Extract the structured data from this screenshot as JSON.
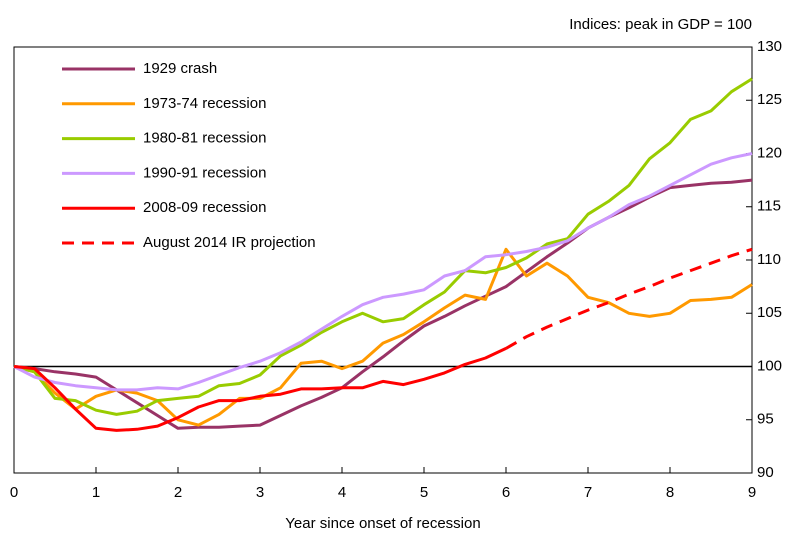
{
  "chart_data": {
    "type": "line",
    "axis_note": "Indices:  peak in GDP = 100",
    "xlabel": "Year since onset of recession",
    "x": [
      0,
      0.25,
      0.5,
      0.75,
      1,
      1.25,
      1.5,
      1.75,
      2,
      2.25,
      2.5,
      2.75,
      3,
      3.25,
      3.5,
      3.75,
      4,
      4.25,
      4.5,
      4.75,
      5,
      5.25,
      5.5,
      5.75,
      6,
      6.25,
      6.5,
      6.75,
      7,
      7.25,
      7.5,
      7.75,
      8,
      8.25,
      8.5,
      8.75,
      9
    ],
    "xlim": [
      0,
      9
    ],
    "xticks": [
      0,
      1,
      2,
      3,
      4,
      5,
      6,
      7,
      8,
      9
    ],
    "ylim": [
      90,
      130
    ],
    "yticks": [
      90,
      95,
      100,
      105,
      110,
      115,
      120,
      125,
      130
    ],
    "reference_line": 100,
    "series": [
      {
        "name": "1929 crash",
        "color": "#993366",
        "values": [
          100,
          99.8,
          99.5,
          99.3,
          99,
          97.8,
          96.6,
          95.4,
          94.2,
          94.3,
          94.3,
          94.4,
          94.5,
          95.4,
          96.3,
          97.1,
          98,
          99.5,
          100.9,
          102.4,
          103.8,
          104.7,
          105.7,
          106.6,
          107.5,
          108.9,
          110.3,
          111.6,
          113,
          114,
          114.9,
          115.9,
          116.8,
          117,
          117.2,
          117.3,
          117.5
        ]
      },
      {
        "name": "1973-74 recession",
        "color": "#ff9900",
        "values": [
          100,
          99.5,
          97.5,
          96,
          97.2,
          97.8,
          97.5,
          96.8,
          95,
          94.5,
          95.5,
          97,
          97,
          98,
          100.3,
          100.5,
          99.8,
          100.5,
          102.2,
          103,
          104.2,
          105.5,
          106.7,
          106.3,
          111,
          108.5,
          109.7,
          108.5,
          106.5,
          106,
          105,
          104.7,
          105,
          106.2,
          106.3,
          106.5,
          107.7
        ]
      },
      {
        "name": "1980-81 recession",
        "color": "#99cc00",
        "values": [
          100,
          99.5,
          97,
          96.8,
          95.9,
          95.5,
          95.8,
          96.8,
          97,
          97.2,
          98.2,
          98.4,
          99.2,
          101,
          102,
          103.2,
          104.2,
          105,
          104.2,
          104.5,
          105.8,
          107,
          109,
          108.8,
          109.3,
          110.2,
          111.5,
          112,
          114.3,
          115.5,
          117,
          119.5,
          121,
          123.2,
          124,
          125.8,
          127
        ]
      },
      {
        "name": "1990-91 recession",
        "color": "#cc99ff",
        "values": [
          100,
          99,
          98.5,
          98.2,
          98,
          97.8,
          97.8,
          98,
          97.9,
          98.5,
          99.2,
          99.9,
          100.5,
          101.3,
          102.3,
          103.5,
          104.7,
          105.8,
          106.5,
          106.8,
          107.2,
          108.5,
          109,
          110.3,
          110.5,
          110.8,
          111.2,
          111.8,
          113,
          114,
          115.2,
          116,
          117,
          118,
          119,
          119.6,
          120
        ]
      },
      {
        "name": "2008-09 recession",
        "color": "#ff0000",
        "values": [
          100,
          99.8,
          98,
          96,
          94.2,
          94,
          94.1,
          94.4,
          95.2,
          96.2,
          96.8,
          96.8,
          97.2,
          97.4,
          97.9,
          97.9,
          98,
          98,
          98.6,
          98.3,
          98.8,
          99.4,
          100.2,
          100.8,
          101.7,
          null,
          null,
          null,
          null,
          null,
          null,
          null,
          null,
          null,
          null,
          null,
          null
        ]
      },
      {
        "name": "August 2014 IR projection",
        "color": "#ff0000",
        "dashed": true,
        "values": [
          null,
          null,
          null,
          null,
          null,
          null,
          null,
          null,
          null,
          null,
          null,
          null,
          null,
          null,
          null,
          null,
          null,
          null,
          null,
          null,
          null,
          null,
          null,
          null,
          101.7,
          102.8,
          103.7,
          104.5,
          105.3,
          106,
          106.8,
          107.5,
          108.3,
          109,
          109.7,
          110.4,
          111
        ]
      }
    ]
  }
}
